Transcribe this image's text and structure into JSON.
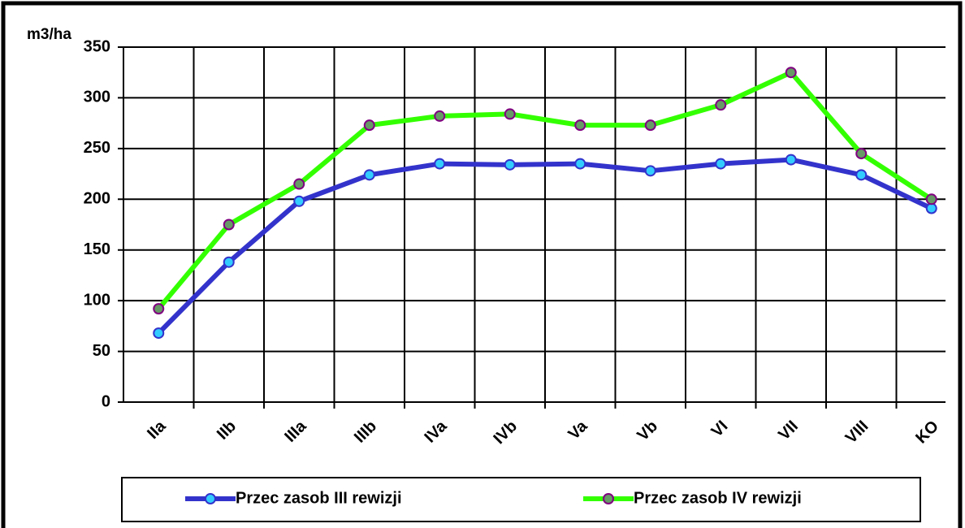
{
  "chart_data": {
    "type": "line",
    "y_label": "m3/ha",
    "categories": [
      "IIa",
      "IIb",
      "IIIa",
      "IIIb",
      "IVa",
      "IVb",
      "Va",
      "Vb",
      "VI",
      "VII",
      "VIII",
      "KO"
    ],
    "series": [
      {
        "name": "Przec zasob III rewizji",
        "color": "#3333cc",
        "marker_fill": "#33ccff",
        "marker_stroke": "#3333cc",
        "values": [
          68,
          138,
          198,
          224,
          235,
          234,
          235,
          228,
          235,
          239,
          224,
          191
        ]
      },
      {
        "name": "Przec zasob IV rewizji",
        "color": "#33ff00",
        "marker_fill": "#669966",
        "marker_stroke": "#800080",
        "values": [
          92,
          175,
          215,
          273,
          282,
          284,
          273,
          273,
          293,
          325,
          245,
          200
        ]
      }
    ],
    "ylim": [
      0,
      350
    ],
    "yticks": [
      0,
      50,
      100,
      150,
      200,
      250,
      300,
      350
    ],
    "grid": true,
    "legend": "bottom"
  }
}
